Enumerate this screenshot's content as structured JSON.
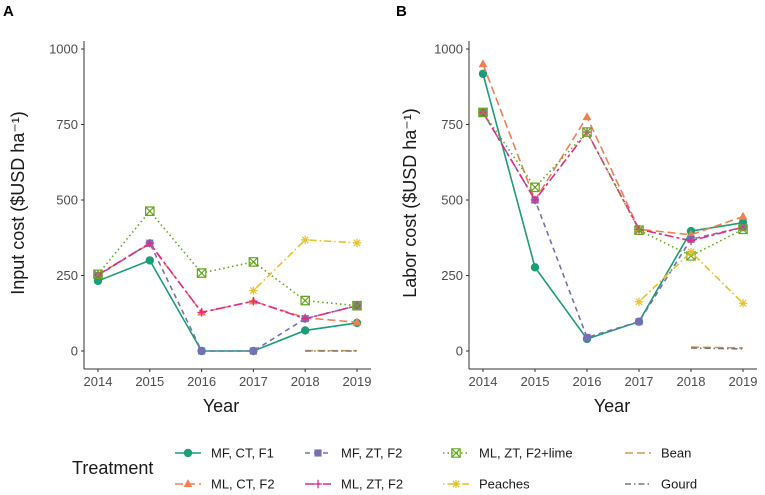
{
  "chart_data": [
    {
      "panel": "A",
      "type": "line",
      "xlabel": "Year",
      "ylabel": "Input cost ($USD ha⁻¹)",
      "ylim": [
        0,
        1000
      ],
      "yticks": [
        0,
        250,
        500,
        750,
        1000
      ],
      "x_categories": [
        "2014",
        "2015",
        "2016",
        "2017",
        "2018",
        "2019"
      ],
      "series": [
        {
          "name": "MF, CT, F1",
          "x": [
            2014,
            2015,
            2016,
            2017,
            2018,
            2019
          ],
          "values": [
            232,
            300,
            0,
            0,
            68,
            93
          ]
        },
        {
          "name": "ML, CT, F2",
          "x": [
            2014,
            2015,
            2016,
            2017,
            2018,
            2019
          ],
          "values": [
            252,
            355,
            128,
            165,
            110,
            95
          ]
        },
        {
          "name": "MF, ZT, F2",
          "x": [
            2014,
            2015,
            2016,
            2017,
            2018,
            2019
          ],
          "values": [
            250,
            357,
            0,
            0,
            107,
            150
          ]
        },
        {
          "name": "ML, ZT, F2",
          "x": [
            2014,
            2015,
            2016,
            2017,
            2018,
            2019
          ],
          "values": [
            252,
            357,
            128,
            165,
            107,
            150
          ]
        },
        {
          "name": "ML, ZT, F2+lime",
          "x": [
            2014,
            2015,
            2016,
            2017,
            2018,
            2019
          ],
          "values": [
            254,
            463,
            258,
            295,
            167,
            150
          ]
        },
        {
          "name": "Peaches",
          "x": [
            2017,
            2018,
            2019
          ],
          "values": [
            200,
            368,
            358
          ]
        },
        {
          "name": "Bean",
          "x": [
            2018,
            2019
          ],
          "values": [
            1,
            1
          ]
        },
        {
          "name": "Gourd",
          "x": [
            2018,
            2019
          ],
          "values": [
            0,
            0
          ]
        }
      ]
    },
    {
      "panel": "B",
      "type": "line",
      "xlabel": "Year",
      "ylabel": "Labor cost ($USD ha⁻¹)",
      "ylim": [
        0,
        1000
      ],
      "yticks": [
        0,
        250,
        500,
        750,
        1000
      ],
      "x_categories": [
        "2014",
        "2015",
        "2016",
        "2017",
        "2018",
        "2019"
      ],
      "series": [
        {
          "name": "MF, CT, F1",
          "x": [
            2014,
            2015,
            2016,
            2017,
            2018,
            2019
          ],
          "values": [
            918,
            277,
            40,
            97,
            397,
            425
          ]
        },
        {
          "name": "ML, CT, F2",
          "x": [
            2014,
            2015,
            2016,
            2017,
            2018,
            2019
          ],
          "values": [
            950,
            500,
            775,
            403,
            385,
            445
          ]
        },
        {
          "name": "MF, ZT, F2",
          "x": [
            2014,
            2015,
            2016,
            2017,
            2018,
            2019
          ],
          "values": [
            790,
            500,
            45,
            97,
            370,
            410
          ]
        },
        {
          "name": "ML, ZT, F2",
          "x": [
            2014,
            2015,
            2016,
            2017,
            2018,
            2019
          ],
          "values": [
            790,
            500,
            725,
            403,
            365,
            410
          ]
        },
        {
          "name": "ML, ZT, F2+lime",
          "x": [
            2014,
            2015,
            2016,
            2017,
            2018,
            2019
          ],
          "values": [
            790,
            542,
            725,
            400,
            315,
            403
          ]
        },
        {
          "name": "Peaches",
          "x": [
            2017,
            2018,
            2019
          ],
          "values": [
            163,
            328,
            158
          ]
        },
        {
          "name": "Bean",
          "x": [
            2018,
            2019
          ],
          "values": [
            13,
            10
          ]
        },
        {
          "name": "Gourd",
          "x": [
            2018,
            2019
          ],
          "values": [
            10,
            7
          ]
        }
      ]
    }
  ],
  "legend": {
    "title": "Treatment",
    "items": [
      {
        "name": "MF, CT, F1",
        "color": "#1b9e77",
        "dash": "solid",
        "marker": "circle"
      },
      {
        "name": "ML, CT, F2",
        "color": "#f08050",
        "dash": "longdash",
        "marker": "triangle"
      },
      {
        "name": "MF, ZT, F2",
        "color": "#7570b3",
        "dash": "dash",
        "marker": "square"
      },
      {
        "name": "ML, ZT, F2",
        "color": "#e7298a",
        "dash": "twodash",
        "marker": "plus"
      },
      {
        "name": "ML, ZT, F2+lime",
        "color": "#66a61e",
        "dash": "dotted",
        "marker": "boxx"
      },
      {
        "name": "Peaches",
        "color": "#e6c229",
        "dash": "dotdash",
        "marker": "asterisk"
      },
      {
        "name": "Bean",
        "color": "#d39a4a",
        "dash": "longdash",
        "marker": "none"
      },
      {
        "name": "Gourd",
        "color": "#777777",
        "dash": "dashdot",
        "marker": "none"
      }
    ]
  }
}
